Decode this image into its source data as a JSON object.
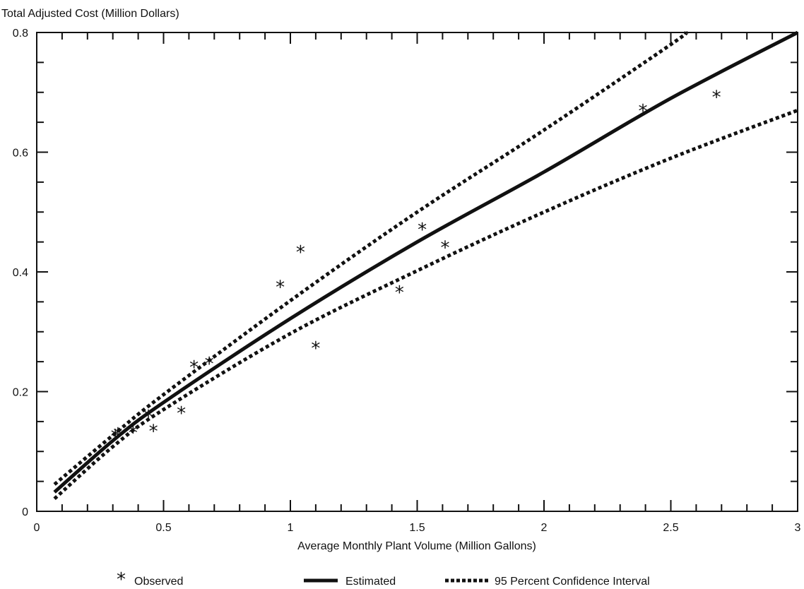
{
  "chart_data": {
    "type": "scatter",
    "title": "",
    "ylabel": "Total Adjusted Cost (Million Dollars)",
    "xlabel": "Average Monthly Plant Volume (Million Gallons)",
    "xlim": [
      0,
      3
    ],
    "ylim": [
      0,
      0.8
    ],
    "x_ticks": [
      0,
      0.5,
      1,
      1.5,
      2,
      2.5,
      3
    ],
    "x_tick_labels": [
      "0",
      "0.5",
      "1",
      "1.5",
      "2",
      "2.5",
      "3"
    ],
    "y_ticks": [
      0,
      0.2,
      0.4,
      0.6,
      0.8
    ],
    "y_tick_labels": [
      "0",
      "0.2",
      "0.4",
      "0.6",
      "0.8"
    ],
    "x_minor_step": 0.1,
    "y_minor_step": 0.05,
    "grid": false,
    "legend_placement": "bottom",
    "colors": {
      "ink": "#111111"
    },
    "series": [
      {
        "name": "Observed",
        "kind": "points",
        "marker": "*",
        "points": [
          {
            "x": 0.31,
            "y": 0.127
          },
          {
            "x": 0.32,
            "y": 0.13
          },
          {
            "x": 0.38,
            "y": 0.133
          },
          {
            "x": 0.44,
            "y": 0.159
          },
          {
            "x": 0.46,
            "y": 0.135
          },
          {
            "x": 0.57,
            "y": 0.165
          },
          {
            "x": 0.62,
            "y": 0.242
          },
          {
            "x": 0.68,
            "y": 0.248
          },
          {
            "x": 0.96,
            "y": 0.376
          },
          {
            "x": 1.04,
            "y": 0.434
          },
          {
            "x": 1.1,
            "y": 0.274
          },
          {
            "x": 1.43,
            "y": 0.367
          },
          {
            "x": 1.52,
            "y": 0.472
          },
          {
            "x": 1.61,
            "y": 0.442
          },
          {
            "x": 2.39,
            "y": 0.67
          },
          {
            "x": 2.68,
            "y": 0.693
          }
        ]
      },
      {
        "name": "Estimated",
        "kind": "line",
        "style": "solid",
        "points": [
          {
            "x": 0.07,
            "y": 0.032
          },
          {
            "x": 0.3,
            "y": 0.118
          },
          {
            "x": 0.5,
            "y": 0.182
          },
          {
            "x": 1.0,
            "y": 0.322
          },
          {
            "x": 1.5,
            "y": 0.45
          },
          {
            "x": 2.0,
            "y": 0.567
          },
          {
            "x": 2.5,
            "y": 0.69
          },
          {
            "x": 3.0,
            "y": 0.8
          }
        ]
      },
      {
        "name": "95 Percent Confidence Interval",
        "kind": "line",
        "style": "dotted",
        "points": [
          {
            "x": 0.07,
            "y": 0.045
          },
          {
            "x": 0.3,
            "y": 0.127
          },
          {
            "x": 0.5,
            "y": 0.195
          },
          {
            "x": 1.0,
            "y": 0.352
          },
          {
            "x": 1.5,
            "y": 0.5
          },
          {
            "x": 2.0,
            "y": 0.637
          },
          {
            "x": 2.5,
            "y": 0.78
          },
          {
            "x": 2.56,
            "y": 0.8
          }
        ]
      },
      {
        "name": "95 Percent Confidence Interval",
        "kind": "line",
        "style": "dotted",
        "points": [
          {
            "x": 0.07,
            "y": 0.021
          },
          {
            "x": 0.3,
            "y": 0.108
          },
          {
            "x": 0.5,
            "y": 0.17
          },
          {
            "x": 1.0,
            "y": 0.297
          },
          {
            "x": 1.5,
            "y": 0.402
          },
          {
            "x": 2.0,
            "y": 0.5
          },
          {
            "x": 2.5,
            "y": 0.59
          },
          {
            "x": 3.0,
            "y": 0.67
          }
        ]
      }
    ],
    "legend": {
      "observed_symbol": "*",
      "observed_label": "Observed",
      "estimated_label": "Estimated",
      "ci_label": "95 Percent Confidence Interval"
    }
  }
}
